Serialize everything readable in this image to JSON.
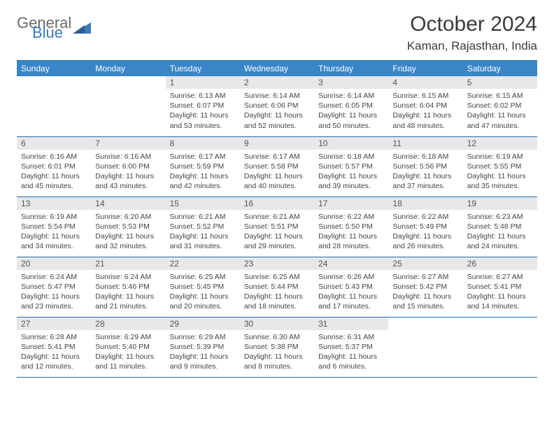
{
  "brand": {
    "part1": "General",
    "part2": "Blue"
  },
  "title": "October 2024",
  "location": "Kaman, Rajasthan, India",
  "colors": {
    "header_bg": "#3a85c8",
    "header_text": "#ffffff",
    "row_border": "#2a6ca8",
    "daynum_bg": "#e8e8e8",
    "brand_blue": "#3a7ab8",
    "brand_gray": "#6a6a6a"
  },
  "weekdays": [
    "Sunday",
    "Monday",
    "Tuesday",
    "Wednesday",
    "Thursday",
    "Friday",
    "Saturday"
  ],
  "weeks": [
    [
      {
        "empty": true
      },
      {
        "empty": true
      },
      {
        "n": "1",
        "sr": "6:13 AM",
        "ss": "6:07 PM",
        "dl": "11 hours and 53 minutes."
      },
      {
        "n": "2",
        "sr": "6:14 AM",
        "ss": "6:06 PM",
        "dl": "11 hours and 52 minutes."
      },
      {
        "n": "3",
        "sr": "6:14 AM",
        "ss": "6:05 PM",
        "dl": "11 hours and 50 minutes."
      },
      {
        "n": "4",
        "sr": "6:15 AM",
        "ss": "6:04 PM",
        "dl": "11 hours and 48 minutes."
      },
      {
        "n": "5",
        "sr": "6:15 AM",
        "ss": "6:02 PM",
        "dl": "11 hours and 47 minutes."
      }
    ],
    [
      {
        "n": "6",
        "sr": "6:16 AM",
        "ss": "6:01 PM",
        "dl": "11 hours and 45 minutes."
      },
      {
        "n": "7",
        "sr": "6:16 AM",
        "ss": "6:00 PM",
        "dl": "11 hours and 43 minutes."
      },
      {
        "n": "8",
        "sr": "6:17 AM",
        "ss": "5:59 PM",
        "dl": "11 hours and 42 minutes."
      },
      {
        "n": "9",
        "sr": "6:17 AM",
        "ss": "5:58 PM",
        "dl": "11 hours and 40 minutes."
      },
      {
        "n": "10",
        "sr": "6:18 AM",
        "ss": "5:57 PM",
        "dl": "11 hours and 39 minutes."
      },
      {
        "n": "11",
        "sr": "6:18 AM",
        "ss": "5:56 PM",
        "dl": "11 hours and 37 minutes."
      },
      {
        "n": "12",
        "sr": "6:19 AM",
        "ss": "5:55 PM",
        "dl": "11 hours and 35 minutes."
      }
    ],
    [
      {
        "n": "13",
        "sr": "6:19 AM",
        "ss": "5:54 PM",
        "dl": "11 hours and 34 minutes."
      },
      {
        "n": "14",
        "sr": "6:20 AM",
        "ss": "5:53 PM",
        "dl": "11 hours and 32 minutes."
      },
      {
        "n": "15",
        "sr": "6:21 AM",
        "ss": "5:52 PM",
        "dl": "11 hours and 31 minutes."
      },
      {
        "n": "16",
        "sr": "6:21 AM",
        "ss": "5:51 PM",
        "dl": "11 hours and 29 minutes."
      },
      {
        "n": "17",
        "sr": "6:22 AM",
        "ss": "5:50 PM",
        "dl": "11 hours and 28 minutes."
      },
      {
        "n": "18",
        "sr": "6:22 AM",
        "ss": "5:49 PM",
        "dl": "11 hours and 26 minutes."
      },
      {
        "n": "19",
        "sr": "6:23 AM",
        "ss": "5:48 PM",
        "dl": "11 hours and 24 minutes."
      }
    ],
    [
      {
        "n": "20",
        "sr": "6:24 AM",
        "ss": "5:47 PM",
        "dl": "11 hours and 23 minutes."
      },
      {
        "n": "21",
        "sr": "6:24 AM",
        "ss": "5:46 PM",
        "dl": "11 hours and 21 minutes."
      },
      {
        "n": "22",
        "sr": "6:25 AM",
        "ss": "5:45 PM",
        "dl": "11 hours and 20 minutes."
      },
      {
        "n": "23",
        "sr": "6:25 AM",
        "ss": "5:44 PM",
        "dl": "11 hours and 18 minutes."
      },
      {
        "n": "24",
        "sr": "6:26 AM",
        "ss": "5:43 PM",
        "dl": "11 hours and 17 minutes."
      },
      {
        "n": "25",
        "sr": "6:27 AM",
        "ss": "5:42 PM",
        "dl": "11 hours and 15 minutes."
      },
      {
        "n": "26",
        "sr": "6:27 AM",
        "ss": "5:41 PM",
        "dl": "11 hours and 14 minutes."
      }
    ],
    [
      {
        "n": "27",
        "sr": "6:28 AM",
        "ss": "5:41 PM",
        "dl": "11 hours and 12 minutes."
      },
      {
        "n": "28",
        "sr": "6:29 AM",
        "ss": "5:40 PM",
        "dl": "11 hours and 11 minutes."
      },
      {
        "n": "29",
        "sr": "6:29 AM",
        "ss": "5:39 PM",
        "dl": "11 hours and 9 minutes."
      },
      {
        "n": "30",
        "sr": "6:30 AM",
        "ss": "5:38 PM",
        "dl": "11 hours and 8 minutes."
      },
      {
        "n": "31",
        "sr": "6:31 AM",
        "ss": "5:37 PM",
        "dl": "11 hours and 6 minutes."
      },
      {
        "empty": true
      },
      {
        "empty": true
      }
    ]
  ],
  "labels": {
    "sunrise": "Sunrise:",
    "sunset": "Sunset:",
    "daylight": "Daylight:"
  }
}
